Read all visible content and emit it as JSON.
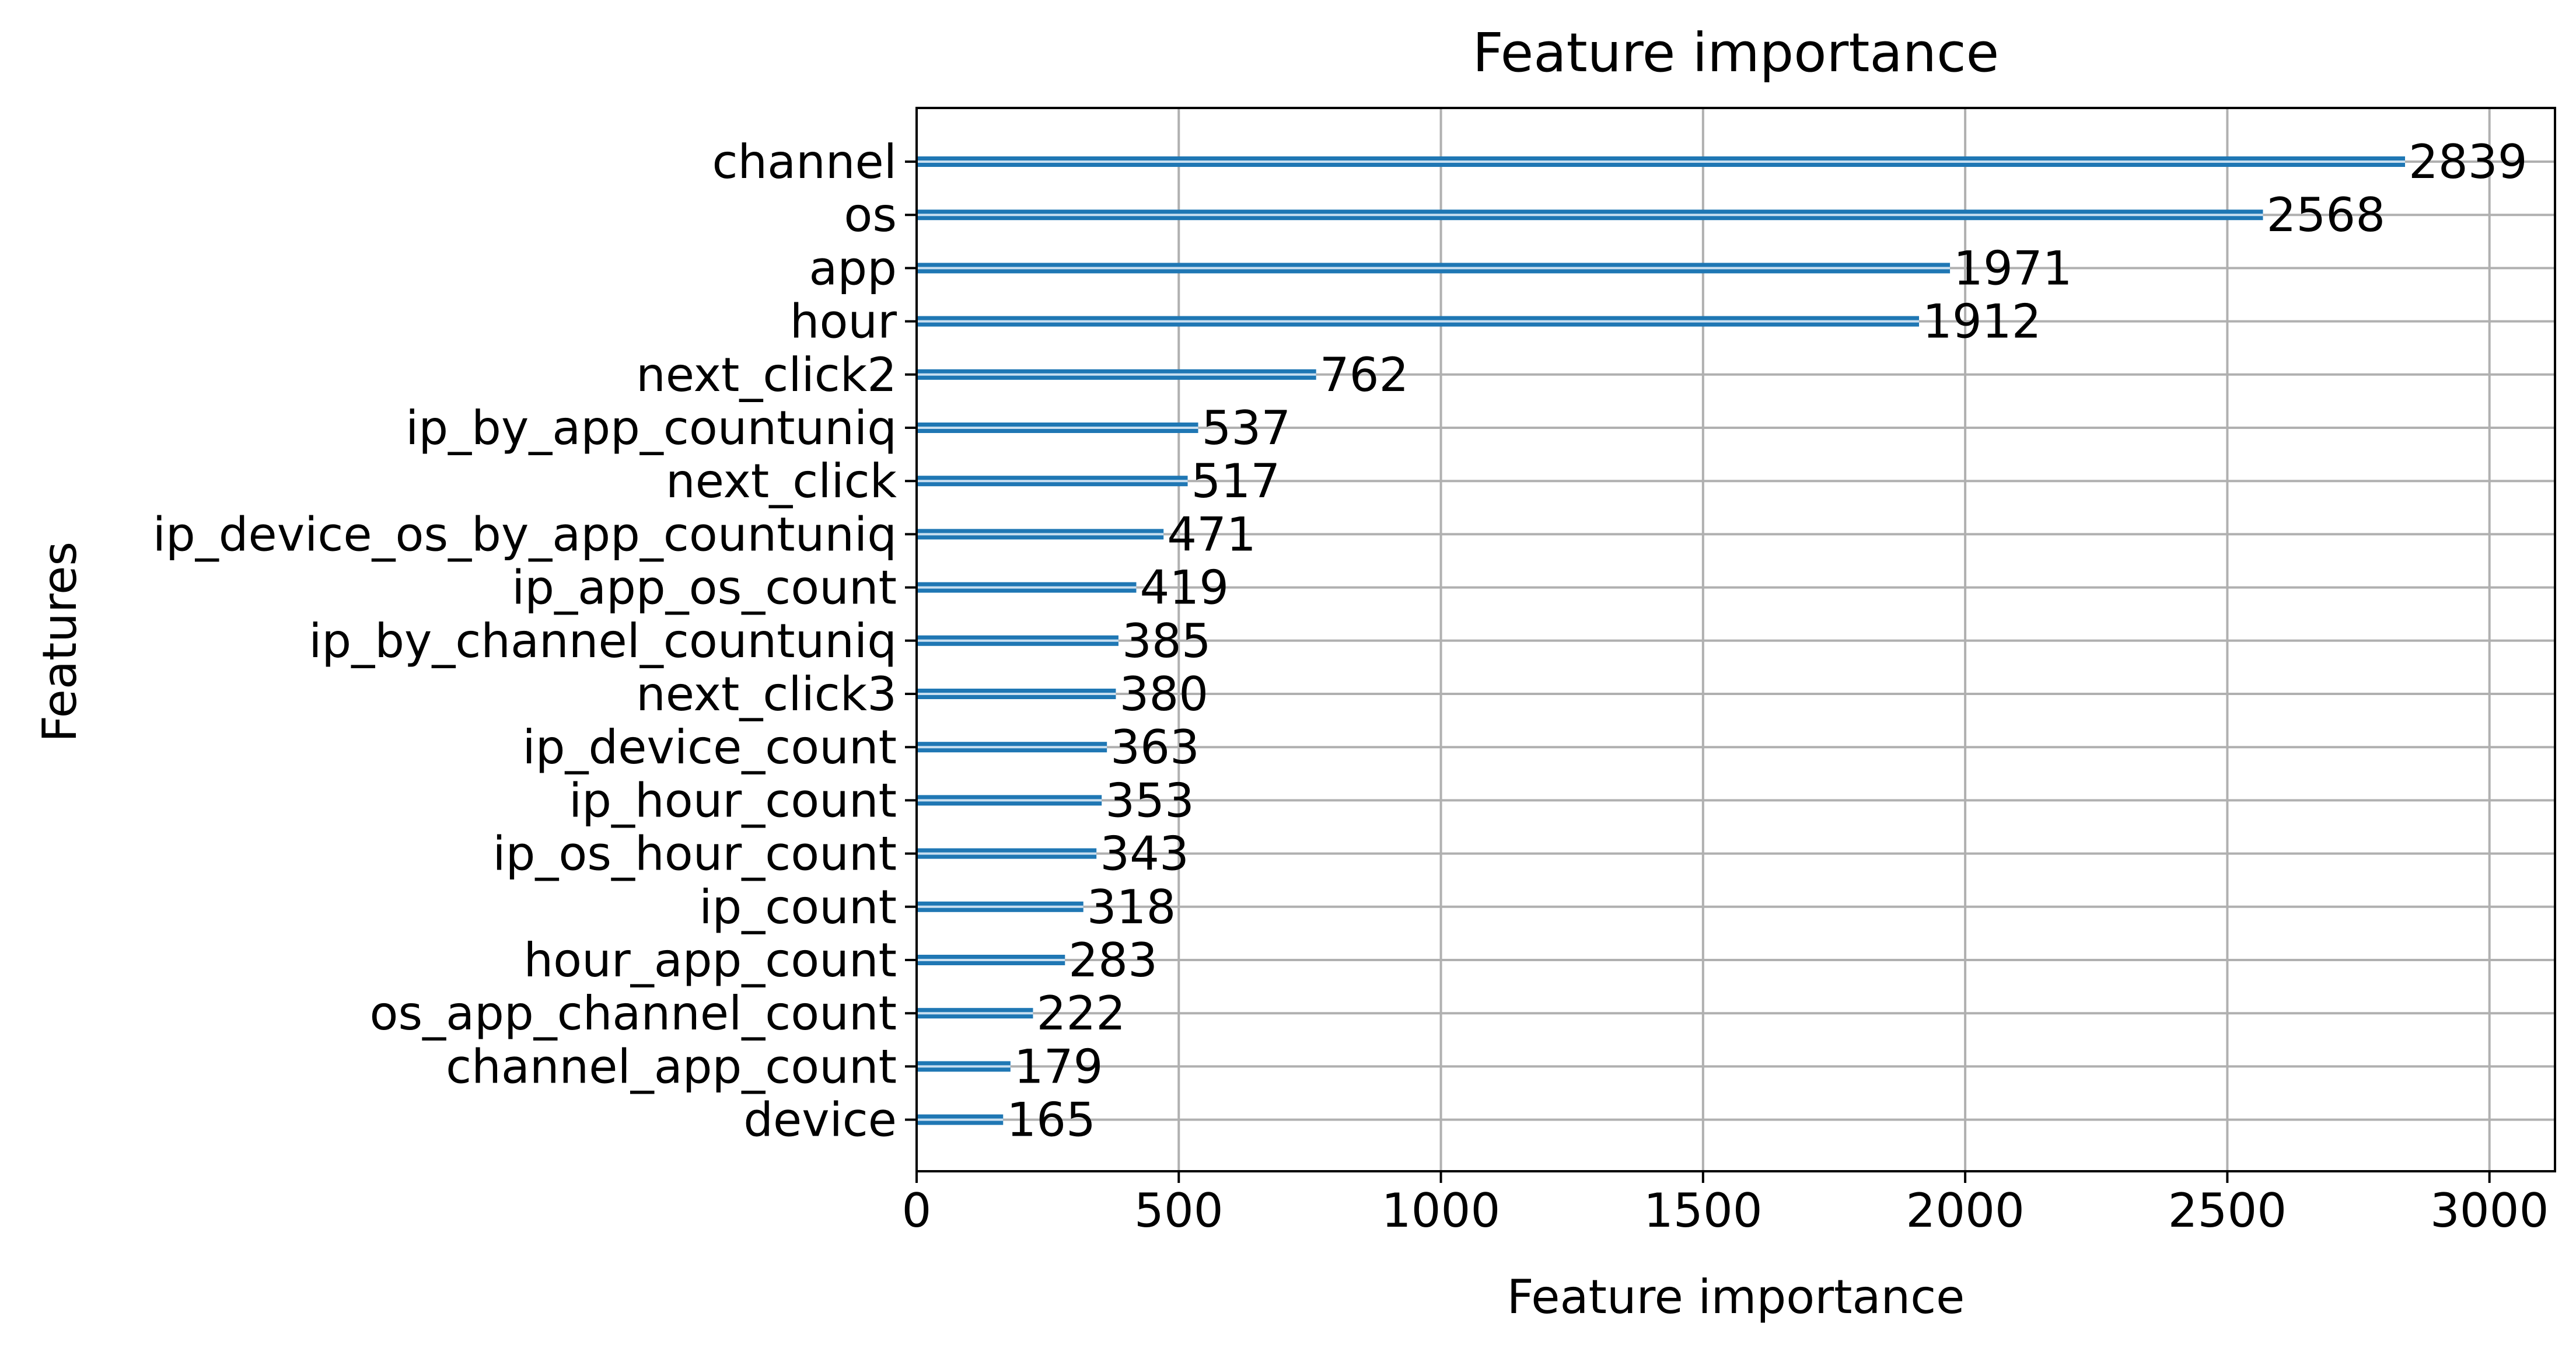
{
  "chart_data": {
    "type": "bar",
    "orientation": "horizontal",
    "title": "Feature importance",
    "xlabel": "Feature importance",
    "ylabel": "Features",
    "xlim": [
      0,
      3125
    ],
    "xticks": [
      0,
      500,
      1000,
      1500,
      2000,
      2500,
      3000
    ],
    "grid": true,
    "legend": "none",
    "bar_color": "#1f77b4",
    "categories": [
      "channel",
      "os",
      "app",
      "hour",
      "next_click2",
      "ip_by_app_countuniq",
      "next_click",
      "ip_device_os_by_app_countuniq",
      "ip_app_os_count",
      "ip_by_channel_countuniq",
      "next_click3",
      "ip_device_count",
      "ip_hour_count",
      "ip_os_hour_count",
      "ip_count",
      "hour_app_count",
      "os_app_channel_count",
      "channel_app_count",
      "device"
    ],
    "values": [
      2839,
      2568,
      1971,
      1912,
      762,
      537,
      517,
      471,
      419,
      385,
      380,
      363,
      353,
      343,
      318,
      283,
      222,
      179,
      165
    ]
  }
}
